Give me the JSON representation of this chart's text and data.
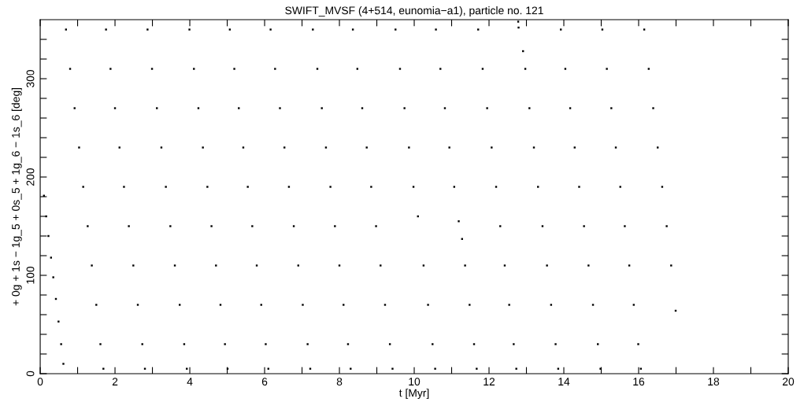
{
  "chart_data": {
    "type": "scatter",
    "title": "SWIFT_MVSF (4+514, eunomia−a1), particle no. 121",
    "xlabel": "t [Myr]",
    "ylabel": "+ 0g + 1s − 1g_5 + 0s_5 + 1g_6 − 1s_6 [deg]",
    "xlim": [
      0,
      20
    ],
    "ylim": [
      0,
      360
    ],
    "xticks": [
      0,
      {
        "value": 1,
        "label": null
      },
      2,
      {
        "value": 3,
        "label": null
      },
      4,
      {
        "value": 5,
        "label": null
      },
      6,
      {
        "value": 7,
        "label": null
      },
      8,
      {
        "value": 9,
        "label": null
      },
      10,
      {
        "value": 11,
        "label": null
      },
      12,
      {
        "value": 13,
        "label": null
      },
      14,
      {
        "value": 15,
        "label": null
      },
      16,
      {
        "value": 17,
        "label": null
      },
      18,
      {
        "value": 19,
        "label": null
      },
      20
    ],
    "yticks": [
      0,
      {
        "value": 20,
        "label": null
      },
      {
        "value": 40,
        "label": null
      },
      {
        "value": 60,
        "label": null
      },
      {
        "value": 80,
        "label": null
      },
      100,
      {
        "value": 120,
        "label": null
      },
      {
        "value": 140,
        "label": null
      },
      {
        "value": 160,
        "label": null
      },
      {
        "value": 180,
        "label": null
      },
      200,
      {
        "value": 220,
        "label": null
      },
      {
        "value": 240,
        "label": null
      },
      {
        "value": 260,
        "label": null
      },
      {
        "value": 280,
        "label": null
      },
      300,
      {
        "value": 320,
        "label": null
      },
      {
        "value": 340,
        "label": null
      }
    ],
    "marker": "square",
    "series": [
      {
        "color": "#000000",
        "x": [
          0.1,
          0.16,
          0.22,
          0.29,
          0.35,
          0.42,
          0.49,
          0.56,
          0.62,
          0.69,
          0.8,
          0.92,
          1.04,
          1.15,
          1.27,
          1.38,
          1.5,
          1.61,
          1.69,
          1.76,
          1.88,
          2.0,
          2.12,
          2.24,
          2.37,
          2.49,
          2.61,
          2.73,
          2.8,
          2.87,
          2.99,
          3.12,
          3.24,
          3.36,
          3.48,
          3.6,
          3.73,
          3.85,
          3.92,
          3.99,
          4.11,
          4.23,
          4.35,
          4.47,
          4.58,
          4.7,
          4.82,
          4.94,
          5.01,
          5.07,
          5.19,
          5.31,
          5.43,
          5.55,
          5.67,
          5.79,
          5.91,
          6.03,
          6.1,
          6.16,
          6.28,
          6.41,
          6.53,
          6.65,
          6.78,
          6.9,
          7.02,
          7.15,
          7.22,
          7.29,
          7.41,
          7.53,
          7.64,
          7.76,
          7.88,
          8.0,
          8.11,
          8.23,
          8.3,
          8.36,
          8.48,
          8.61,
          8.73,
          8.85,
          8.98,
          9.1,
          9.22,
          9.35,
          9.42,
          9.5,
          9.62,
          9.74,
          9.86,
          9.98,
          10.1,
          10.25,
          10.37,
          10.49,
          10.56,
          10.58,
          10.7,
          10.82,
          10.94,
          11.07,
          11.19,
          11.28,
          11.36,
          11.48,
          11.6,
          11.67,
          11.71,
          11.83,
          11.95,
          12.07,
          12.19,
          12.3,
          12.42,
          12.54,
          12.66,
          12.73,
          12.78,
          12.79,
          12.91,
          12.97,
          13.08,
          13.2,
          13.31,
          13.43,
          13.55,
          13.66,
          13.78,
          13.85,
          13.92,
          14.04,
          14.17,
          14.29,
          14.41,
          14.54,
          14.66,
          14.78,
          14.91,
          14.98,
          15.03,
          15.15,
          15.27,
          15.39,
          15.51,
          15.63,
          15.75,
          15.87,
          15.99,
          16.06,
          16.15,
          16.27,
          16.39,
          16.51,
          16.63,
          16.75,
          16.87,
          16.99
        ],
        "values": [
          181,
          160,
          140,
          118,
          98,
          76,
          53,
          30,
          10,
          350,
          310,
          270,
          230,
          190,
          150,
          110,
          70,
          30,
          5,
          350,
          310,
          270,
          230,
          190,
          150,
          110,
          70,
          30,
          5,
          350,
          310,
          270,
          230,
          190,
          150,
          110,
          70,
          30,
          5,
          350,
          310,
          270,
          230,
          190,
          150,
          110,
          70,
          30,
          5,
          350,
          310,
          270,
          230,
          190,
          150,
          110,
          70,
          30,
          5,
          350,
          310,
          270,
          230,
          190,
          150,
          110,
          70,
          30,
          5,
          350,
          310,
          270,
          230,
          190,
          150,
          110,
          70,
          30,
          5,
          350,
          310,
          270,
          230,
          190,
          150,
          110,
          70,
          30,
          5,
          350,
          310,
          270,
          230,
          190,
          160,
          110,
          70,
          30,
          5,
          350,
          310,
          270,
          230,
          190,
          155,
          137,
          110,
          70,
          30,
          5,
          350,
          310,
          270,
          230,
          190,
          150,
          110,
          70,
          30,
          5,
          358,
          352,
          328,
          310,
          270,
          230,
          190,
          150,
          110,
          70,
          30,
          5,
          350,
          310,
          270,
          230,
          190,
          150,
          110,
          70,
          30,
          5,
          350,
          310,
          270,
          230,
          190,
          150,
          110,
          70,
          30,
          5,
          350,
          310,
          270,
          230,
          190,
          150,
          110,
          64
        ]
      }
    ]
  }
}
